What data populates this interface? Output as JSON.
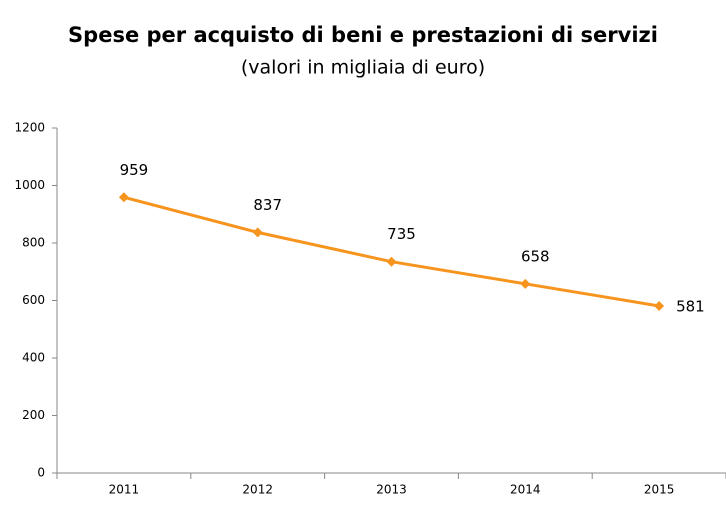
{
  "chart_data": {
    "type": "line",
    "title": "Spese per acquisto di beni e prestazioni di servizi",
    "subtitle": "(valori in migliaia di euro)",
    "categories": [
      "2011",
      "2012",
      "2013",
      "2014",
      "2015"
    ],
    "series": [
      {
        "name": "Spese",
        "color": "#f7941d",
        "values": [
          959,
          837,
          735,
          658,
          581
        ]
      }
    ],
    "ylim": [
      0,
      1200
    ],
    "yticks": [
      0,
      200,
      400,
      600,
      800,
      1000,
      1200
    ],
    "grid": false
  }
}
